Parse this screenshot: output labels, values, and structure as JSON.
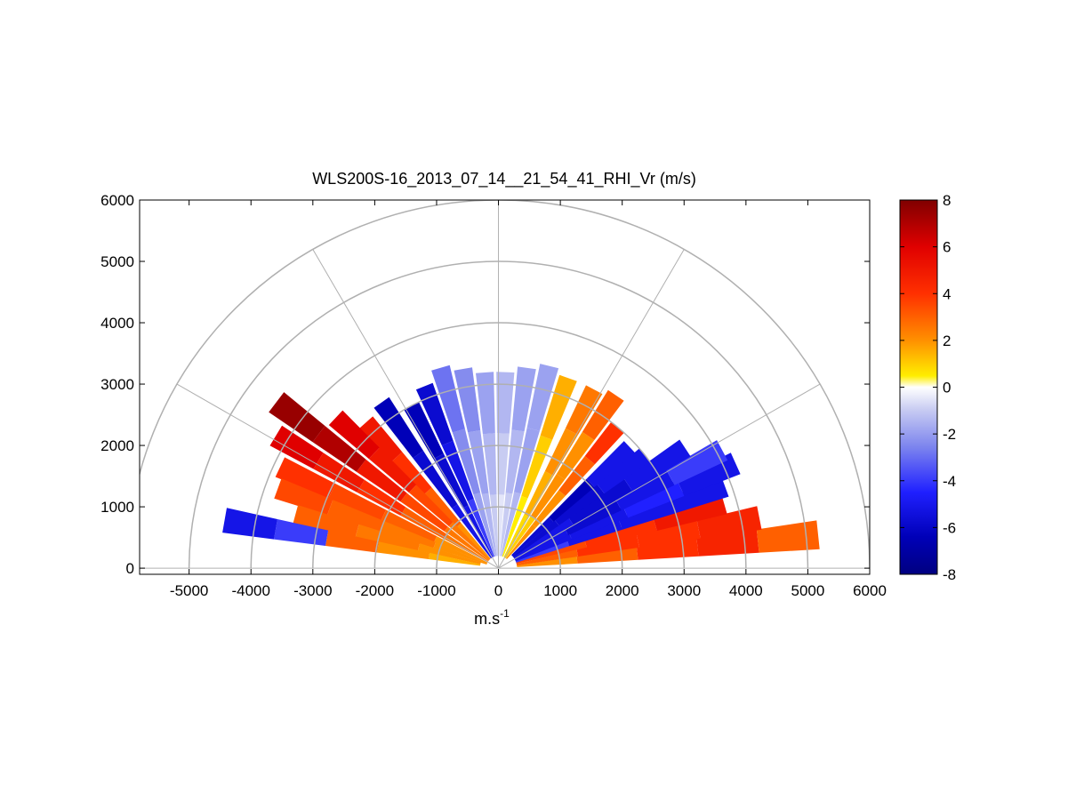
{
  "chart_data": {
    "type": "heatmap",
    "subtype": "polar-rhi-sector",
    "title": "WLS200S-16_2013_07_14__21_54_41_RHI_Vr (m/s)",
    "xlabel_base": "m.s",
    "xlabel_sup": "-1",
    "ylabel": "",
    "xlim": [
      -5800,
      6000
    ],
    "ylim": [
      -100,
      6000
    ],
    "x_ticks": [
      -5000,
      -4000,
      -3000,
      -2000,
      -1000,
      0,
      1000,
      2000,
      3000,
      4000,
      5000,
      6000
    ],
    "y_ticks": [
      0,
      1000,
      2000,
      3000,
      4000,
      5000,
      6000
    ],
    "range_rings_m": [
      1000,
      2000,
      3000,
      4000,
      5000,
      6000
    ],
    "spokes_deg": [
      0,
      30,
      60,
      90,
      120,
      150,
      180
    ],
    "grid": true,
    "colorbar": {
      "label": "",
      "lim": [
        -8,
        8
      ],
      "ticks": [
        8,
        6,
        4,
        2,
        0,
        -2,
        -4,
        -6,
        -8
      ],
      "colors": [
        "#000080",
        "#0000ff",
        "#6b7cf0",
        "#e6e6f8",
        "#ffff00",
        "#ff8c00",
        "#ff0000",
        "#800000"
      ]
    },
    "beams": [
      {
        "az": 6,
        "r0": 300,
        "r1": 5200,
        "vr": [
          2,
          3,
          4,
          4.5,
          3
        ]
      },
      {
        "az": 11,
        "r0": 300,
        "r1": 4300,
        "vr": [
          3,
          4,
          4,
          4.5
        ]
      },
      {
        "az": 16,
        "r0": 300,
        "r1": 3800,
        "vr": [
          3.5,
          4,
          5
        ]
      },
      {
        "az": 20,
        "r0": 300,
        "r1": 3900,
        "vr": [
          -4,
          -5,
          -5,
          -5
        ]
      },
      {
        "az": 24,
        "r0": 300,
        "r1": 4200,
        "vr": [
          -5,
          -5,
          -4.5,
          -5
        ]
      },
      {
        "az": 28,
        "r0": 300,
        "r1": 4100,
        "vr": [
          -5,
          -5.5,
          -5,
          -4
        ]
      },
      {
        "az": 33,
        "r0": 300,
        "r1": 3600,
        "vr": [
          -5,
          -5.5,
          -5
        ]
      },
      {
        "az": 38,
        "r0": 300,
        "r1": 3000,
        "vr": [
          -5.5,
          -5.5,
          -5
        ]
      },
      {
        "az": 43,
        "r0": 300,
        "r1": 2900,
        "vr": [
          -5.5,
          -6,
          -5
        ]
      },
      {
        "az": 50,
        "r0": 200,
        "r1": 3000,
        "vr": [
          2,
          2,
          3,
          4
        ]
      },
      {
        "az": 56,
        "r0": 200,
        "r1": 3400,
        "vr": [
          1,
          2,
          2,
          3
        ]
      },
      {
        "az": 62,
        "r0": 200,
        "r1": 3300,
        "vr": [
          0.8,
          1.5,
          2,
          2.5
        ]
      },
      {
        "az": 70,
        "r0": 200,
        "r1": 3300,
        "vr": [
          0.5,
          1,
          1.5
        ]
      },
      {
        "az": 76,
        "r0": 200,
        "r1": 3400,
        "vr": [
          -1.5,
          -2,
          -2
        ]
      },
      {
        "az": 82,
        "r0": 200,
        "r1": 3300,
        "vr": [
          -1,
          -1.5,
          -2
        ]
      },
      {
        "az": 88,
        "r0": 200,
        "r1": 3200,
        "vr": [
          -0.5,
          -1,
          -1.5
        ]
      },
      {
        "az": 94,
        "r0": 200,
        "r1": 3200,
        "vr": [
          -1,
          -1.5,
          -2
        ]
      },
      {
        "az": 100,
        "r0": 200,
        "r1": 3300,
        "vr": [
          -1.5,
          -2,
          -2.5
        ]
      },
      {
        "az": 106,
        "r0": 200,
        "r1": 3400,
        "vr": [
          -2,
          -2.5,
          -3
        ]
      },
      {
        "az": 112,
        "r0": 200,
        "r1": 3200,
        "vr": [
          -4,
          -5,
          -5.5
        ]
      },
      {
        "az": 118,
        "r0": 200,
        "r1": 3000,
        "vr": [
          -5,
          -5.5,
          -6
        ]
      },
      {
        "az": 125,
        "r0": 200,
        "r1": 3300,
        "vr": [
          -5,
          -5.5,
          -6
        ]
      },
      {
        "az": 132,
        "r0": 200,
        "r1": 3200,
        "vr": [
          2,
          3,
          4,
          5
        ]
      },
      {
        "az": 137,
        "r0": 200,
        "r1": 3600,
        "vr": [
          2.5,
          3.5,
          5,
          6
        ]
      },
      {
        "az": 143,
        "r0": 200,
        "r1": 4500,
        "vr": [
          2.5,
          3.5,
          5,
          7,
          7.5
        ]
      },
      {
        "az": 149,
        "r0": 200,
        "r1": 4200,
        "vr": [
          2.5,
          3,
          4,
          5,
          6
        ]
      },
      {
        "az": 155,
        "r0": 200,
        "r1": 3900,
        "vr": [
          2,
          3,
          3.5,
          4
        ]
      },
      {
        "az": 160,
        "r0": 200,
        "r1": 3800,
        "vr": [
          2,
          2.5,
          3,
          3.5
        ]
      },
      {
        "az": 165,
        "r0": 300,
        "r1": 3400,
        "vr": [
          2,
          2.5,
          3
        ]
      },
      {
        "az": 170,
        "r0": 300,
        "r1": 4500,
        "vr": [
          1.5,
          2,
          3,
          -4,
          -5
        ]
      }
    ]
  }
}
